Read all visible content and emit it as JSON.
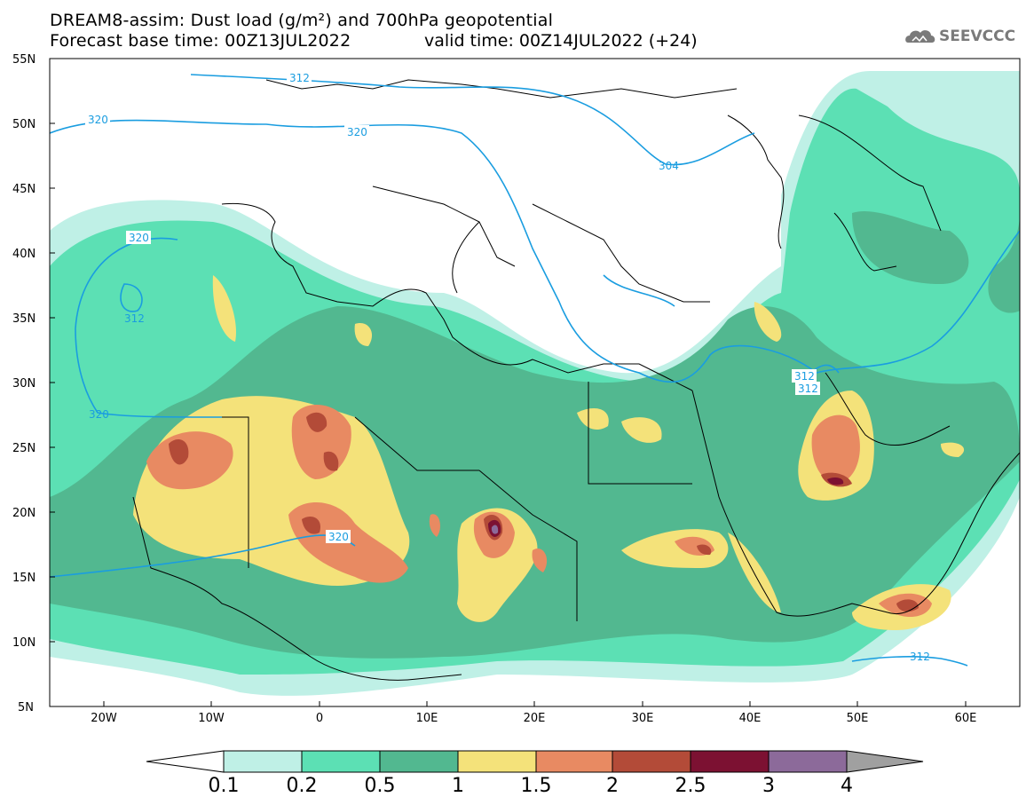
{
  "title_line1": "DREAM8-assim: Dust load (g/m²) and 700hPa geopotential",
  "title_line2_left": "Forecast base time: 00Z13JUL2022",
  "title_line2_right": "valid time: 00Z14JUL2022 (+24)",
  "logo_text": "SEEVCCC",
  "y_ticks": [
    "55N",
    "50N",
    "45N",
    "40N",
    "35N",
    "30N",
    "25N",
    "20N",
    "15N",
    "10N",
    "5N"
  ],
  "x_ticks": [
    "20W",
    "10W",
    "0",
    "10E",
    "20E",
    "30E",
    "40E",
    "50E",
    "60E"
  ],
  "contour_labels": [
    "312",
    "320",
    "320",
    "320",
    "312",
    "320",
    "320",
    "304",
    "312",
    "312",
    "312"
  ],
  "legend": {
    "thresholds": [
      "0.1",
      "0.2",
      "0.5",
      "1",
      "1.5",
      "2",
      "2.5",
      "3",
      "4"
    ],
    "colors": [
      "#ffffff",
      "#bff0e6",
      "#5ce0b4",
      "#52b890",
      "#f4e27a",
      "#e88a62",
      "#b34b38",
      "#7c1132",
      "#8c6a9a",
      "#a0a0a0"
    ]
  },
  "colors": {
    "contour": "#1a9de0",
    "coast": "#000000"
  }
}
